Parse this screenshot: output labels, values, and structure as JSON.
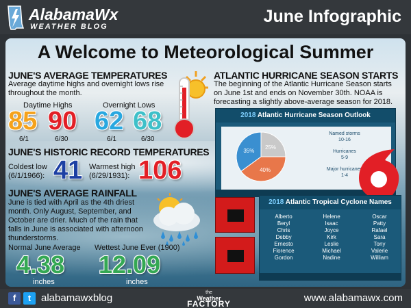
{
  "header": {
    "brand_title": "AlabamaWx",
    "brand_sub": "WEATHER BLOG",
    "page_title": "June Infographic"
  },
  "main_title": "A Welcome to Meteorological Summer",
  "temps": {
    "heading": "JUNE'S AVERAGE TEMPERATURES",
    "body": "Average daytime highs and overnight lows rise throughout the month.",
    "highs_label": "Daytime Highs",
    "lows_label": "Overnight Lows",
    "high_1": "85",
    "high_1_date": "6/1",
    "high_2": "90",
    "high_2_date": "6/30",
    "low_1": "62",
    "low_1_date": "6/1",
    "low_2": "68",
    "low_2_date": "6/30"
  },
  "records": {
    "heading": "JUNE'S HISTORIC RECORD TEMPERATURES",
    "coldest_label_1": "Coldest low",
    "coldest_label_2": "(6/1/1966):",
    "coldest_value": "41",
    "warmest_label_1": "Warmest high",
    "warmest_label_2": "(6/29/1931):",
    "warmest_value": "106"
  },
  "rainfall": {
    "heading": "JUNE'S AVERAGE RAINFALL",
    "body": "June is tied with April as the 4th driest month. Only August, September, and October are drier. Much of the rain that falls in June is associated with afternoon thunderstorms.",
    "normal_label": "Normal June Average",
    "normal_value": "4.38",
    "normal_unit": "inches",
    "wettest_label": "Wettest June Ever (1900)",
    "wettest_value": "12.09",
    "wettest_unit": "inches"
  },
  "hurricane": {
    "heading": "ATLANTIC HURRICANE SEASON STARTS",
    "body": "The beginning of the Atlantic Hurricane Season starts on June 1st and ends on November 30th. NOAA is forecasting a slightly above-average season for 2018."
  },
  "outlook_image": {
    "year": "2018",
    "title": "Atlantic Hurricane Season Outlook",
    "pie_values": [
      25,
      40,
      35
    ],
    "pie_labels": [
      "25%",
      "40%",
      "35%"
    ],
    "named_storms_label": "Named storms",
    "named_storms_range": "10-16",
    "hurricanes_label": "Hurricanes",
    "hurricanes_range": "5-9",
    "major_label": "Major hurricanes",
    "major_range": "1-4",
    "colors": {
      "blue": "#3a8fd0",
      "orange": "#e8774a",
      "gray": "#c9c9c9"
    }
  },
  "names_image": {
    "year": "2018",
    "title": "Atlantic Tropical Cyclone Names",
    "col1": [
      "Alberto",
      "Beryl",
      "Chris",
      "Debby",
      "Ernesto",
      "Florence",
      "Gordon"
    ],
    "col2": [
      "Helene",
      "Isaac",
      "Joyce",
      "Kirk",
      "Leslie",
      "Michael",
      "Nadine"
    ],
    "col3": [
      "Oscar",
      "Patty",
      "Rafael",
      "Sara",
      "Tony",
      "Valerie",
      "William"
    ]
  },
  "footer": {
    "handle": "alabamawxblog",
    "mid_the": "the",
    "mid_weather": "Weather",
    "mid_factory": "FACTORY",
    "url": "www.alabamawx.com"
  },
  "icons": [
    "alabama-logo-icon",
    "thermometer-sun-icon",
    "rain-cloud-icon",
    "hurricane-symbol-icon",
    "hurricane-warning-flag-icon",
    "facebook-icon",
    "twitter-icon"
  ]
}
